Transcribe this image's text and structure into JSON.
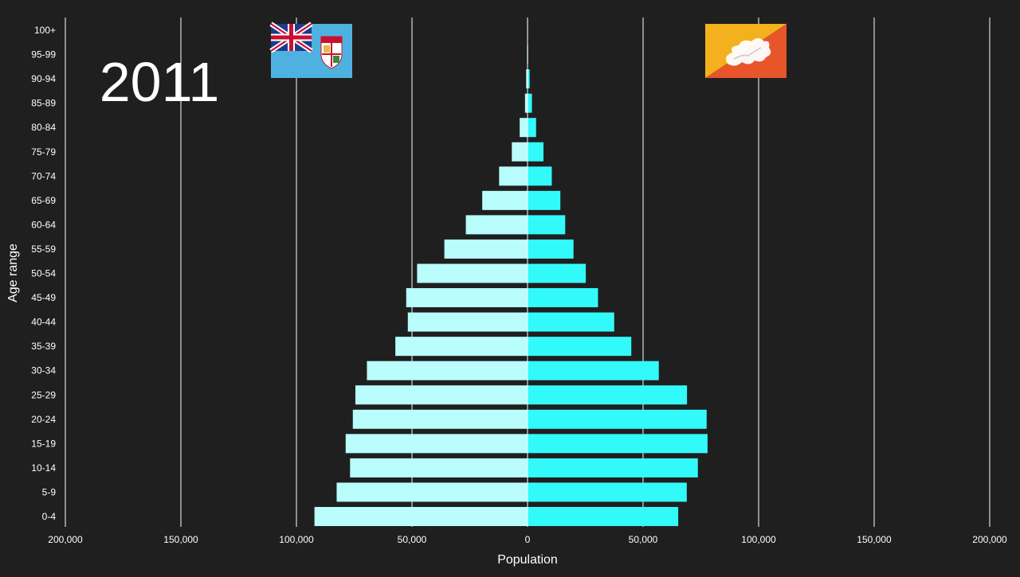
{
  "year": "2011",
  "flags": {
    "left": {
      "name": "fiji-flag",
      "icon": "fiji-flag-icon",
      "field": "#4fb1df",
      "canton_blue": "#1d3b8c",
      "cross_red": "#c8102e"
    },
    "right": {
      "name": "bhutan-flag",
      "icon": "bhutan-flag-icon",
      "upper": "#f3b11d",
      "lower": "#e8552a",
      "dragon": "#ffffff"
    }
  },
  "colors": {
    "background": "#1f1f1f",
    "left_bars": "#b9fdfd",
    "right_bars": "#33fafa",
    "grid": "#ffffff",
    "text": "#ffffff"
  },
  "chart_data": {
    "type": "bar",
    "orientation": "horizontal-population-pyramid",
    "xlabel": "Population",
    "ylabel": "Age range",
    "xlim": [
      -200000,
      200000
    ],
    "x_ticks": [
      -200000,
      -150000,
      -100000,
      -50000,
      0,
      50000,
      100000,
      150000,
      200000
    ],
    "x_tick_labels": [
      "200,000",
      "150,000",
      "100,000",
      "50,000",
      "0",
      "50,000",
      "100,000",
      "150,000",
      "200,000"
    ],
    "grid": true,
    "categories": [
      "100+",
      "95-99",
      "90-94",
      "85-89",
      "80-84",
      "75-79",
      "70-74",
      "65-69",
      "60-64",
      "55-59",
      "50-54",
      "45-49",
      "40-44",
      "35-39",
      "30-34",
      "25-29",
      "20-24",
      "15-19",
      "10-14",
      "5-9",
      "0-4"
    ],
    "series": [
      {
        "side": "left",
        "values": [
          60,
          200,
          600,
          1100,
          3400,
          6800,
          12300,
          19600,
          26700,
          36000,
          47800,
          52500,
          51800,
          57200,
          69500,
          74500,
          75600,
          78700,
          76800,
          82600,
          92200
        ]
      },
      {
        "side": "right",
        "values": [
          80,
          250,
          900,
          1900,
          3700,
          6900,
          10500,
          14200,
          16300,
          19900,
          25200,
          30500,
          37500,
          44900,
          56800,
          69000,
          77500,
          77900,
          73700,
          68900,
          65200
        ]
      }
    ]
  }
}
